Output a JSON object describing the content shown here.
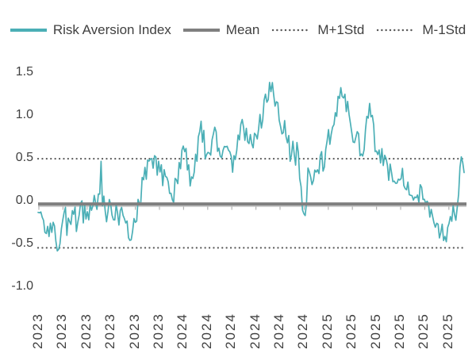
{
  "legend": {
    "items": [
      {
        "label": "Risk Aversion Index",
        "swatch": "teal-line",
        "color": "#4BAFB6"
      },
      {
        "label": "Mean",
        "swatch": "gray-thick-line",
        "color": "#7F7F7F"
      },
      {
        "label": "M+1Std",
        "swatch": "dotted-line",
        "color": "#595959"
      },
      {
        "label": "M-1Std",
        "swatch": "dotted-line",
        "color": "#595959"
      }
    ]
  },
  "chart_data": {
    "type": "line",
    "title": "",
    "series_name": "Risk Aversion Index",
    "legend_position": "top",
    "grid": false,
    "ylim": [
      -1.0,
      1.5
    ],
    "yticks": [
      "1.5",
      "1.0",
      "0.5",
      "0.0",
      "-0.5",
      "-1.0"
    ],
    "ytick_values": [
      1.5,
      1.0,
      0.5,
      0.0,
      -0.5,
      -1.0
    ],
    "xlabels": [
      "2023",
      "2023",
      "2023",
      "2023",
      "2023",
      "2023",
      "2024",
      "2024",
      "2024",
      "2024",
      "2024",
      "2024",
      "2025",
      "2025",
      "2025",
      "2025",
      "2025",
      "2025"
    ],
    "x_axis_note": "bimonthly ticks, Jan 2023 - Nov 2025, daily observations",
    "reference_lines": {
      "mean": -0.02,
      "m_plus_1std": 0.49,
      "m_minus_1std": -0.55
    },
    "series_keypoints_format": "[month_index_from_Jan2023, value, local_oscillation_amplitude]",
    "series_keypoints": [
      [
        0.0,
        -0.1,
        0.05
      ],
      [
        0.3,
        -0.22,
        0.12
      ],
      [
        0.8,
        -0.25,
        0.15
      ],
      [
        1.3,
        -0.35,
        0.15
      ],
      [
        1.6,
        -0.62,
        0.08
      ],
      [
        1.9,
        -0.35,
        0.15
      ],
      [
        2.3,
        -0.25,
        0.18
      ],
      [
        2.8,
        -0.22,
        0.15
      ],
      [
        3.4,
        -0.18,
        0.18
      ],
      [
        4.0,
        -0.12,
        0.15
      ],
      [
        4.6,
        -0.08,
        0.12
      ],
      [
        5.1,
        0.1,
        0.25
      ],
      [
        5.25,
        0.4,
        0.22
      ],
      [
        5.5,
        -0.05,
        0.15
      ],
      [
        6.2,
        -0.15,
        0.18
      ],
      [
        7.0,
        -0.22,
        0.18
      ],
      [
        7.8,
        -0.42,
        0.1
      ],
      [
        8.3,
        -0.12,
        0.12
      ],
      [
        9.0,
        0.3,
        0.18
      ],
      [
        9.4,
        0.58,
        0.12
      ],
      [
        10.0,
        0.42,
        0.15
      ],
      [
        10.8,
        0.22,
        0.12
      ],
      [
        11.3,
        0.0,
        0.1
      ],
      [
        11.9,
        0.45,
        0.15
      ],
      [
        12.4,
        0.52,
        0.15
      ],
      [
        13.0,
        0.12,
        0.15
      ],
      [
        13.6,
        0.95,
        0.18
      ],
      [
        14.2,
        0.45,
        0.12
      ],
      [
        14.8,
        0.82,
        0.12
      ],
      [
        15.4,
        0.5,
        0.1
      ],
      [
        15.9,
        0.7,
        0.1
      ],
      [
        16.4,
        0.38,
        0.1
      ],
      [
        17.0,
        0.88,
        0.12
      ],
      [
        17.6,
        0.72,
        0.15
      ],
      [
        18.3,
        0.75,
        0.15
      ],
      [
        19.0,
        1.05,
        0.15
      ],
      [
        19.6,
        1.38,
        0.1
      ],
      [
        20.1,
        1.1,
        0.12
      ],
      [
        20.6,
        0.85,
        0.15
      ],
      [
        21.2,
        0.62,
        0.18
      ],
      [
        21.8,
        0.55,
        0.15
      ],
      [
        22.3,
        -0.25,
        0.12
      ],
      [
        22.7,
        0.25,
        0.2
      ],
      [
        23.3,
        0.45,
        0.2
      ],
      [
        23.9,
        0.45,
        0.18
      ],
      [
        24.5,
        0.75,
        0.15
      ],
      [
        25.1,
        1.0,
        0.15
      ],
      [
        25.6,
        1.38,
        0.14
      ],
      [
        26.1,
        1.02,
        0.15
      ],
      [
        26.6,
        0.72,
        0.18
      ],
      [
        27.2,
        0.55,
        0.15
      ],
      [
        27.9,
        1.05,
        0.15
      ],
      [
        28.4,
        0.62,
        0.12
      ],
      [
        28.9,
        0.55,
        0.18
      ],
      [
        29.5,
        0.35,
        0.12
      ],
      [
        30.1,
        0.32,
        0.12
      ],
      [
        30.7,
        0.28,
        0.12
      ],
      [
        31.2,
        0.18,
        0.12
      ],
      [
        31.7,
        0.05,
        0.1
      ],
      [
        32.2,
        0.1,
        0.12
      ],
      [
        32.7,
        -0.05,
        0.1
      ],
      [
        33.2,
        -0.18,
        0.1
      ],
      [
        33.7,
        -0.38,
        0.13
      ],
      [
        34.2,
        -0.4,
        0.13
      ],
      [
        34.55,
        -0.3,
        0.13
      ],
      [
        34.9,
        -0.12,
        0.08
      ],
      [
        35.15,
        -0.3,
        0.05
      ],
      [
        35.5,
        0.55,
        0.12
      ],
      [
        35.8,
        0.36,
        0.04
      ]
    ],
    "colors": {
      "series": "#4BAFB6",
      "mean_line": "#7F7F7F",
      "std_lines": "#595959",
      "axis": "#B3B3B3",
      "text": "#404040"
    }
  }
}
